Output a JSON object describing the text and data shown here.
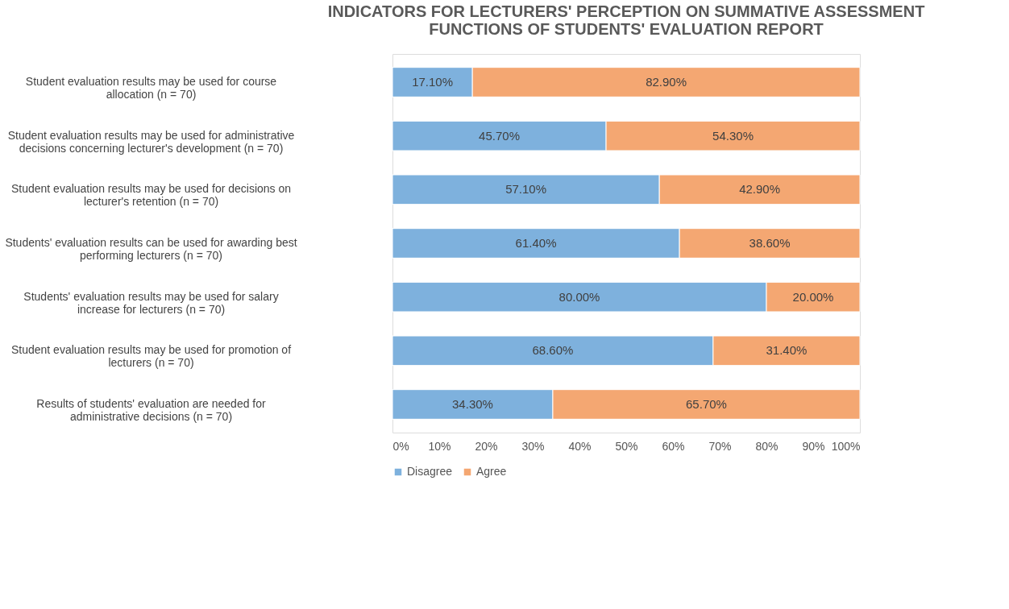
{
  "chart_data": {
    "type": "bar",
    "orientation": "horizontal",
    "stacked": true,
    "title": "INDICATORS FOR LECTURERS' PERCEPTION ON SUMMATIVE ASSESSMENT FUNCTIONS OF STUDENTS' EVALUATION REPORT",
    "categories": [
      "Student evaluation results may be used for course allocation (n = 70)",
      "Student evaluation results may be used for administrative decisions concerning lecturer's development (n = 70)",
      "Student evaluation results may be used for decisions on lecturer's retention (n = 70)",
      "Students' evaluation results can be used for awarding best performing lecturers (n = 70)",
      "Students' evaluation results may be used for salary increase for lecturers (n = 70)",
      "Student evaluation results may be used for promotion of lecturers (n = 70)",
      "Results of students' evaluation are needed for administrative decisions (n = 70)"
    ],
    "series": [
      {
        "name": "Disagree",
        "color": "#7eb1dd",
        "values": [
          17.1,
          45.7,
          57.1,
          61.4,
          80.0,
          68.6,
          34.3
        ],
        "value_labels": [
          "17.10%",
          "45.70%",
          "57.10%",
          "61.40%",
          "80.00%",
          "68.60%",
          "34.30%"
        ]
      },
      {
        "name": "Agree",
        "color": "#f4a772",
        "values": [
          82.9,
          54.3,
          42.9,
          38.6,
          20.0,
          31.4,
          65.7
        ],
        "value_labels": [
          "82.90%",
          "54.30%",
          "42.90%",
          "38.60%",
          "20.00%",
          "31.40%",
          "65.70%"
        ]
      }
    ],
    "xlim": [
      0,
      100
    ],
    "xticks": [
      {
        "value": 0,
        "label": "0%"
      },
      {
        "value": 10,
        "label": "10%"
      },
      {
        "value": 20,
        "label": "20%"
      },
      {
        "value": 30,
        "label": "30%"
      },
      {
        "value": 40,
        "label": "40%"
      },
      {
        "value": 50,
        "label": "50%"
      },
      {
        "value": 60,
        "label": "60%"
      },
      {
        "value": 70,
        "label": "70%"
      },
      {
        "value": 80,
        "label": "80%"
      },
      {
        "value": 90,
        "label": "90%"
      },
      {
        "value": 100,
        "label": "100%"
      }
    ],
    "grid": false,
    "legend": "bottom"
  }
}
